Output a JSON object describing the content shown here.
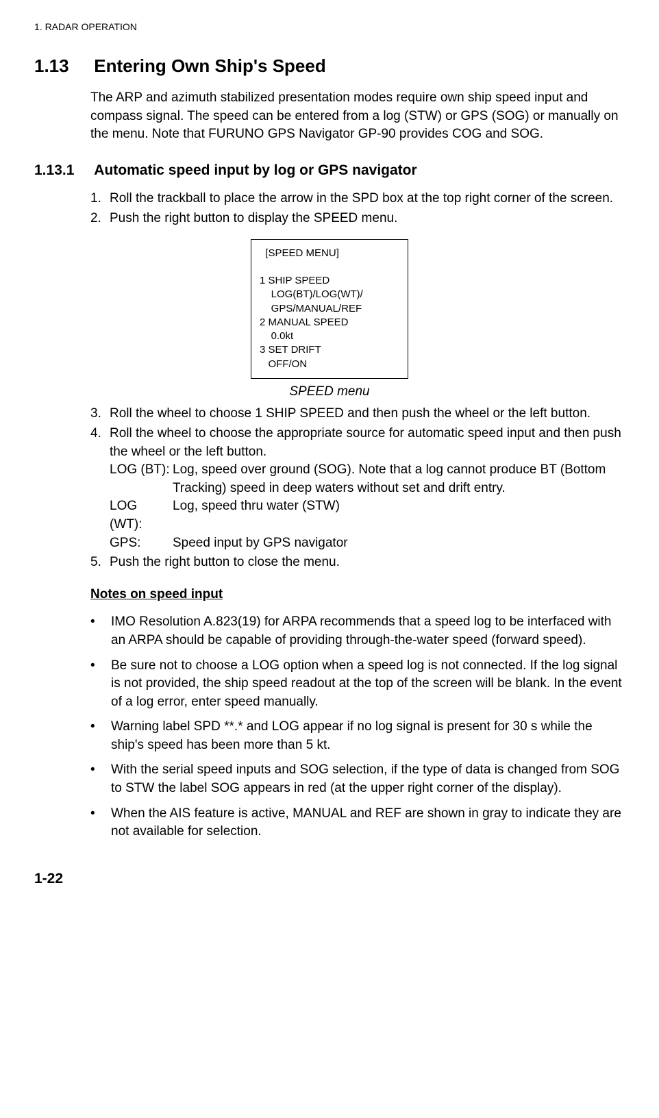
{
  "header": "1. RADAR OPERATION",
  "section": {
    "number": "1.13",
    "title": "Entering Own Ship's Speed",
    "intro": "The ARP and azimuth stabilized presentation modes require own ship speed input and compass signal. The speed can be entered from a log (STW) or GPS (SOG) or manually on the menu. Note that FURUNO GPS Navigator GP-90 provides COG and SOG."
  },
  "subsection": {
    "number": "1.13.1",
    "title": "Automatic speed input by log or GPS navigator"
  },
  "steps1": [
    {
      "num": "1.",
      "text": "Roll the trackball to place the arrow in the SPD box at the top right corner of the screen."
    },
    {
      "num": "2.",
      "text": "Push the right button to display the SPEED menu."
    }
  ],
  "menuBox": {
    "title": "[SPEED MENU]",
    "lines": [
      "1  SHIP SPEED",
      "    LOG(BT)/LOG(WT)/",
      "    GPS/MANUAL/REF",
      "2  MANUAL SPEED",
      "    0.0kt",
      "3  SET DRIFT",
      "   OFF/ON"
    ]
  },
  "menuCaption": "SPEED menu",
  "steps2": [
    {
      "num": "3.",
      "text": "Roll the wheel to choose 1 SHIP SPEED and then push the wheel or the left button."
    },
    {
      "num": "4.",
      "text": "Roll the wheel to choose the appropriate source for automatic speed input and then push the wheel or the left button."
    }
  ],
  "defs": [
    {
      "label": "LOG (BT):",
      "text": "Log, speed over ground (SOG). Note that a log cannot produce BT (Bottom Tracking) speed in deep waters without set and drift entry."
    },
    {
      "label": "LOG (WT):",
      "text": "Log, speed thru water (STW)"
    },
    {
      "label": "GPS:",
      "text": "Speed input by GPS navigator"
    }
  ],
  "steps3": [
    {
      "num": "5.",
      "text": "Push the right button to close the menu."
    }
  ],
  "notesHeading": "Notes on speed input",
  "bullets": [
    "IMO Resolution A.823(19) for ARPA recommends that a speed log to be interfaced with an ARPA should be capable of providing through-the-water speed (forward speed).",
    "Be sure not to choose a LOG option when a speed log is not connected. If the log signal is not provided, the ship speed readout at the top of the screen will be blank. In the event of a log error, enter speed manually.",
    "Warning label SPD **.* and LOG appear if no log signal is present for 30 s while the ship's speed has been more than 5 kt.",
    "With the serial speed inputs and SOG selection, if the type of data is changed from SOG to STW the label SOG appears in red (at the upper right corner of the display).",
    "When the AIS feature is active, MANUAL and REF are shown in gray to indicate they are not available for selection."
  ],
  "footer": "1-22"
}
